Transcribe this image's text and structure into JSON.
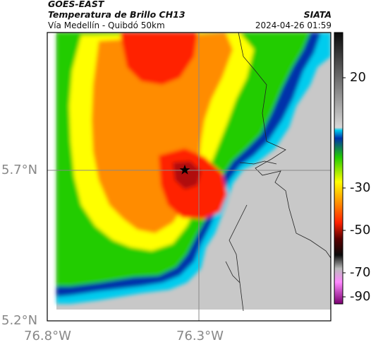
{
  "header": {
    "satellite": "GOES-EAST",
    "product": "Temperatura de Brillo CH13",
    "route": "Vía Medellín - Quibdó 50km",
    "agency": "SIATA",
    "datetime": "2024-04-26 01:59"
  },
  "axes": {
    "lat_ticks": [
      "5.7°N",
      "5.2°N"
    ],
    "lon_ticks": [
      "76.8°W",
      "76.3°W"
    ]
  },
  "colorbar": {
    "ticks": [
      "20",
      "-30",
      "-50",
      "-70",
      "-90"
    ],
    "range": [
      -95,
      35
    ]
  },
  "map": {
    "marker": "star-icon",
    "colors": {
      "land": "#c8c8c8",
      "deep_cloud": "#b01010",
      "red": "#ff2200",
      "orange": "#ff8c00",
      "yellow": "#ffff00",
      "green": "#22cc00",
      "blue": "#0033aa",
      "cyan": "#00ccee"
    }
  }
}
